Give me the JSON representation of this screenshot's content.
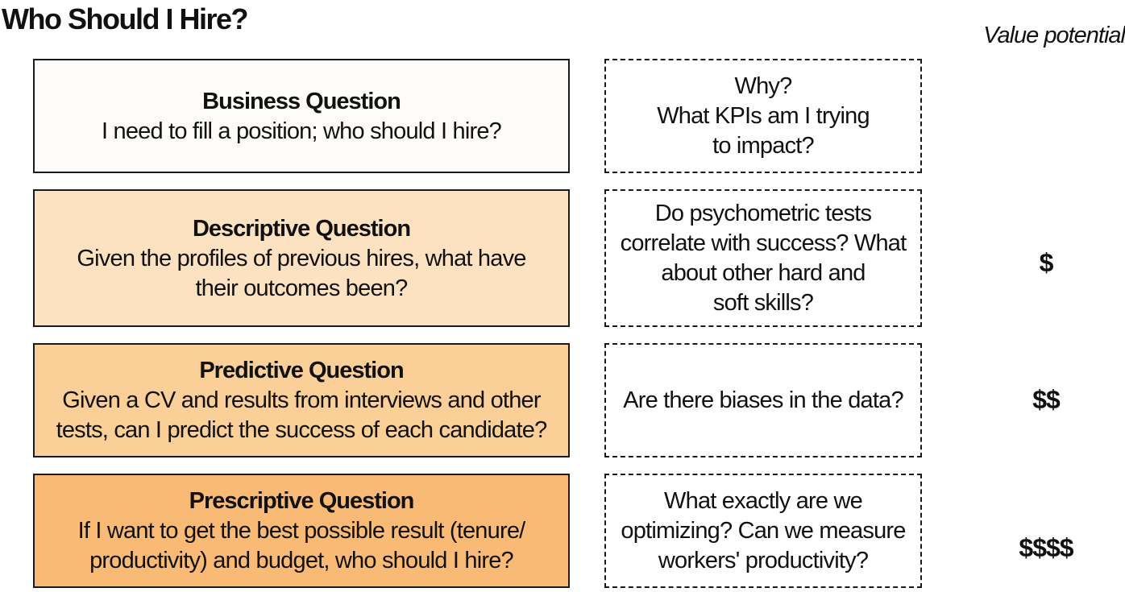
{
  "title": "Who Should I Hire?",
  "value_header": "Value potential",
  "rows": [
    {
      "heading": "Business Question",
      "text": "I need to fill a position; who should I hire?",
      "note": "Why?\nWhat KPIs am I trying\nto impact?",
      "value": "",
      "fill": "#fdfcf9"
    },
    {
      "heading": "Descriptive Question",
      "text": "Given the profiles of previous hires, what have\ntheir outcomes been?",
      "note": "Do psychometric tests\ncorrelate with success? What\nabout other hard and\nsoft skills?",
      "value": "$",
      "fill": "#fde2c2"
    },
    {
      "heading": "Predictive Question",
      "text": "Given a CV and results from interviews and other\ntests, can I predict the success of each candidate?",
      "note": "Are there biases in the data?",
      "value": "$$",
      "fill": "#fbcf98"
    },
    {
      "heading": "Prescriptive Question",
      "text": "If I want to get the best possible result (tenure/\nproductivity) and budget, who should I hire?",
      "note": "What exactly are we\noptimizing? Can we measure\nworkers' productivity?",
      "value": "$$$$",
      "fill": "#f9ba76"
    }
  ]
}
